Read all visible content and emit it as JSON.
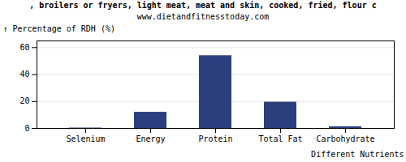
{
  "chart_data": {
    "type": "bar",
    "title": ", broilers or fryers, light meat, meat and skin, cooked, fried, flour c",
    "subtitle": "www.dietandfitnesstoday.com",
    "xlabel": "Different Nutrients",
    "ylabel": "Percentage of RDH (%)",
    "categories": [
      "Selenium",
      "Energy",
      "Protein",
      "Total Fat",
      "Carbohydrate"
    ],
    "values": [
      0.3,
      12.0,
      54.0,
      19.5,
      1.2
    ],
    "color": "#2b3f7e",
    "ylim": [
      0,
      65
    ],
    "yticks": [
      0,
      20,
      40,
      60
    ],
    "grid": true
  }
}
